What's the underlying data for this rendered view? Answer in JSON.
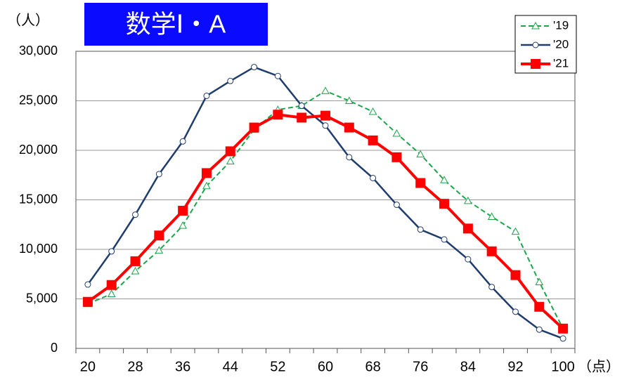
{
  "chart_data": {
    "type": "line",
    "title": "数学Ⅰ・A",
    "y_label": "（人）",
    "x_label": "（点）",
    "categories": [
      "20",
      null,
      "28",
      null,
      "36",
      null,
      "44",
      null,
      "52",
      null,
      "60",
      null,
      "68",
      null,
      "76",
      null,
      "84",
      null,
      "92",
      null,
      "100"
    ],
    "series": [
      {
        "name": "'19",
        "color": "#1aa64a",
        "marker": "triangle",
        "dashed": true,
        "line_width": 2,
        "values": [
          4500,
          5500,
          7800,
          9900,
          12400,
          16400,
          18900,
          22100,
          24100,
          24500,
          26000,
          25000,
          23900,
          21700,
          19600,
          17000,
          14900,
          13300,
          11800,
          6700,
          2000
        ]
      },
      {
        "name": "'20",
        "color": "#1f3c6e",
        "marker": "circle",
        "dashed": false,
        "line_width": 2.5,
        "values": [
          6450,
          9800,
          13500,
          17600,
          20900,
          25500,
          27000,
          28400,
          27500,
          24500,
          22500,
          19300,
          17200,
          14500,
          12000,
          11000,
          9000,
          6200,
          3700,
          1900,
          1000
        ]
      },
      {
        "name": "'21",
        "color": "#ff0000",
        "marker": "square",
        "dashed": false,
        "line_width": 4,
        "values": [
          4700,
          6400,
          8800,
          11400,
          13900,
          17700,
          19900,
          22300,
          23600,
          23300,
          23500,
          22300,
          21000,
          19300,
          16700,
          14600,
          12100,
          9800,
          7400,
          4200,
          2000
        ]
      }
    ],
    "ylim": [
      0,
      30000
    ],
    "yticks": [
      0,
      {
        "value": 5000,
        "label": "5,000"
      },
      {
        "value": 10000,
        "label": "10,000"
      },
      {
        "value": 15000,
        "label": "15,000"
      },
      {
        "value": 20000,
        "label": "20,000"
      },
      {
        "value": 25000,
        "label": "25,000"
      },
      {
        "value": 30000,
        "label": "30,000"
      }
    ],
    "grid": true,
    "legend": "top-right",
    "title_background": "#0a0aff"
  }
}
